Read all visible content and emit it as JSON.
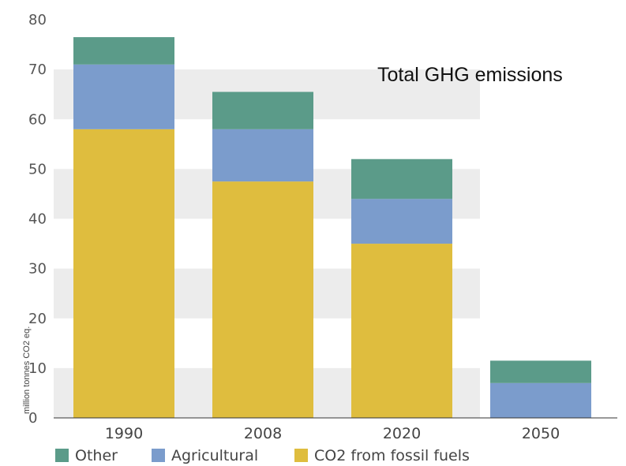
{
  "chart_data": {
    "type": "bar",
    "stacked": true,
    "title": "Total GHG emissions",
    "ylabel": "million tonnes CO2 eq.",
    "xlabel": "",
    "ylim": [
      0,
      80
    ],
    "yticks": [
      "0",
      "10",
      "20",
      "30",
      "40",
      "50",
      "60",
      "70",
      "80"
    ],
    "categories": [
      "1990",
      "2008",
      "2020",
      "2050"
    ],
    "series": [
      {
        "name": "CO2 from fossil fuels",
        "values": [
          58,
          47.5,
          35,
          0
        ],
        "color": "#dfbd3e"
      },
      {
        "name": "Agricultural",
        "values": [
          13,
          10.5,
          9,
          7
        ],
        "color": "#7b9ccc"
      },
      {
        "name": "Other",
        "values": [
          5.5,
          7.5,
          8,
          4.5
        ],
        "color": "#5b9b89"
      }
    ],
    "legend": {
      "placement": "bottom",
      "entries": [
        "Other",
        "Agricultural",
        "CO2 from fossil fuels"
      ],
      "colors": [
        "#5b9b89",
        "#7b9ccc",
        "#dfbd3e"
      ]
    },
    "grid": "alternating horizontal bands"
  }
}
